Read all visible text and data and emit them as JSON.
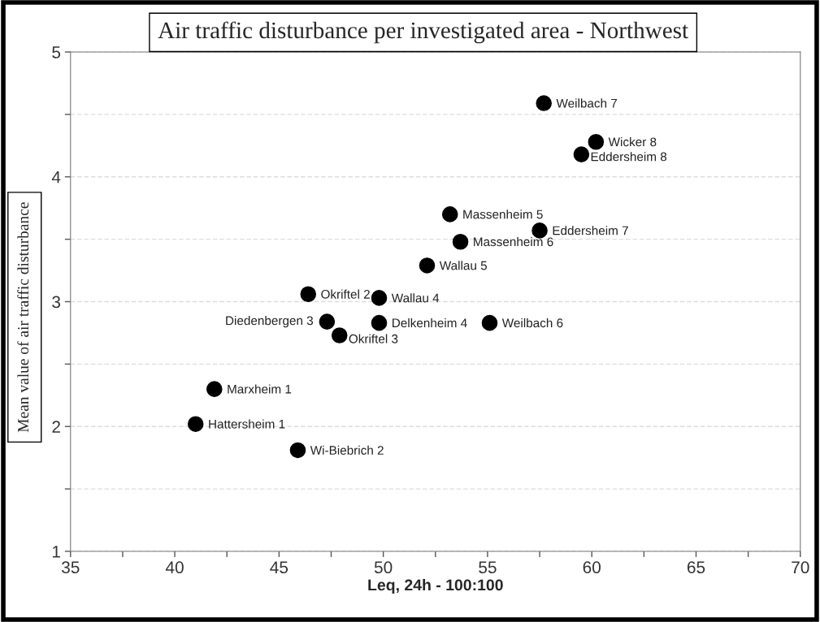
{
  "chart_data": {
    "type": "scatter",
    "title": "Air traffic disturbance per investigated area - Northwest",
    "xlabel": "Leq, 24h - 100:100",
    "ylabel": "Mean value of air traffic disturbance",
    "series": [
      {
        "color": "#000000",
        "marker": "circle",
        "x": [
          57.7,
          60.2,
          59.5,
          53.2,
          57.5,
          53.7,
          52.1,
          46.4,
          49.8,
          47.3,
          49.8,
          47.9,
          55.1,
          41.9,
          41.0,
          45.9
        ],
        "values": [
          4.59,
          4.28,
          4.18,
          3.7,
          3.57,
          3.48,
          3.29,
          3.06,
          3.03,
          2.84,
          2.83,
          2.73,
          2.83,
          2.3,
          2.02,
          1.81
        ]
      }
    ],
    "annotations": [
      {
        "text": "Weilbach 7",
        "x": 57.7,
        "y": 4.59
      },
      {
        "text": "Wicker 8",
        "x": 60.2,
        "y": 4.28
      },
      {
        "text": "Eddersheim 8",
        "x": 59.5,
        "y": 4.18
      },
      {
        "text": "Massenheim 5",
        "x": 53.2,
        "y": 3.7
      },
      {
        "text": "Eddersheim 7",
        "x": 57.5,
        "y": 3.57
      },
      {
        "text": "Massenheim 6",
        "x": 53.7,
        "y": 3.48
      },
      {
        "text": "Wallau 5",
        "x": 52.1,
        "y": 3.29
      },
      {
        "text": "Okriftel 2",
        "x": 46.4,
        "y": 3.06
      },
      {
        "text": "Wallau 4",
        "x": 49.8,
        "y": 3.03
      },
      {
        "text": "Diedenbergen 3",
        "x": 47.3,
        "y": 2.84
      },
      {
        "text": "Delkenheim 4",
        "x": 49.8,
        "y": 2.83
      },
      {
        "text": "Okriftel 3",
        "x": 47.9,
        "y": 2.73
      },
      {
        "text": "Weilbach 6",
        "x": 55.1,
        "y": 2.83
      },
      {
        "text": "Marxheim 1",
        "x": 41.9,
        "y": 2.3
      },
      {
        "text": "Hattersheim 1",
        "x": 41.0,
        "y": 2.02
      },
      {
        "text": "Wi-Biebrich 2",
        "x": 45.9,
        "y": 1.81
      }
    ],
    "xlim": [
      35,
      70
    ],
    "xticks": [
      35,
      {
        "value": 37.5,
        "label": null
      },
      40,
      {
        "value": 42.5,
        "label": null
      },
      45,
      {
        "value": 47.5,
        "label": null
      },
      50,
      {
        "value": 52.5,
        "label": null
      },
      55,
      {
        "value": 57.5,
        "label": null
      },
      60,
      {
        "value": 62.5,
        "label": null
      },
      65,
      {
        "value": 67.5,
        "label": null
      },
      70
    ],
    "ylim": [
      1,
      5
    ],
    "yticks": [
      1,
      {
        "value": 1.5,
        "label": null
      },
      2,
      {
        "value": 2.5,
        "label": null
      },
      3,
      {
        "value": 3.5,
        "label": null
      },
      4,
      {
        "value": 4.5,
        "label": null
      },
      5
    ],
    "grid": "y"
  }
}
